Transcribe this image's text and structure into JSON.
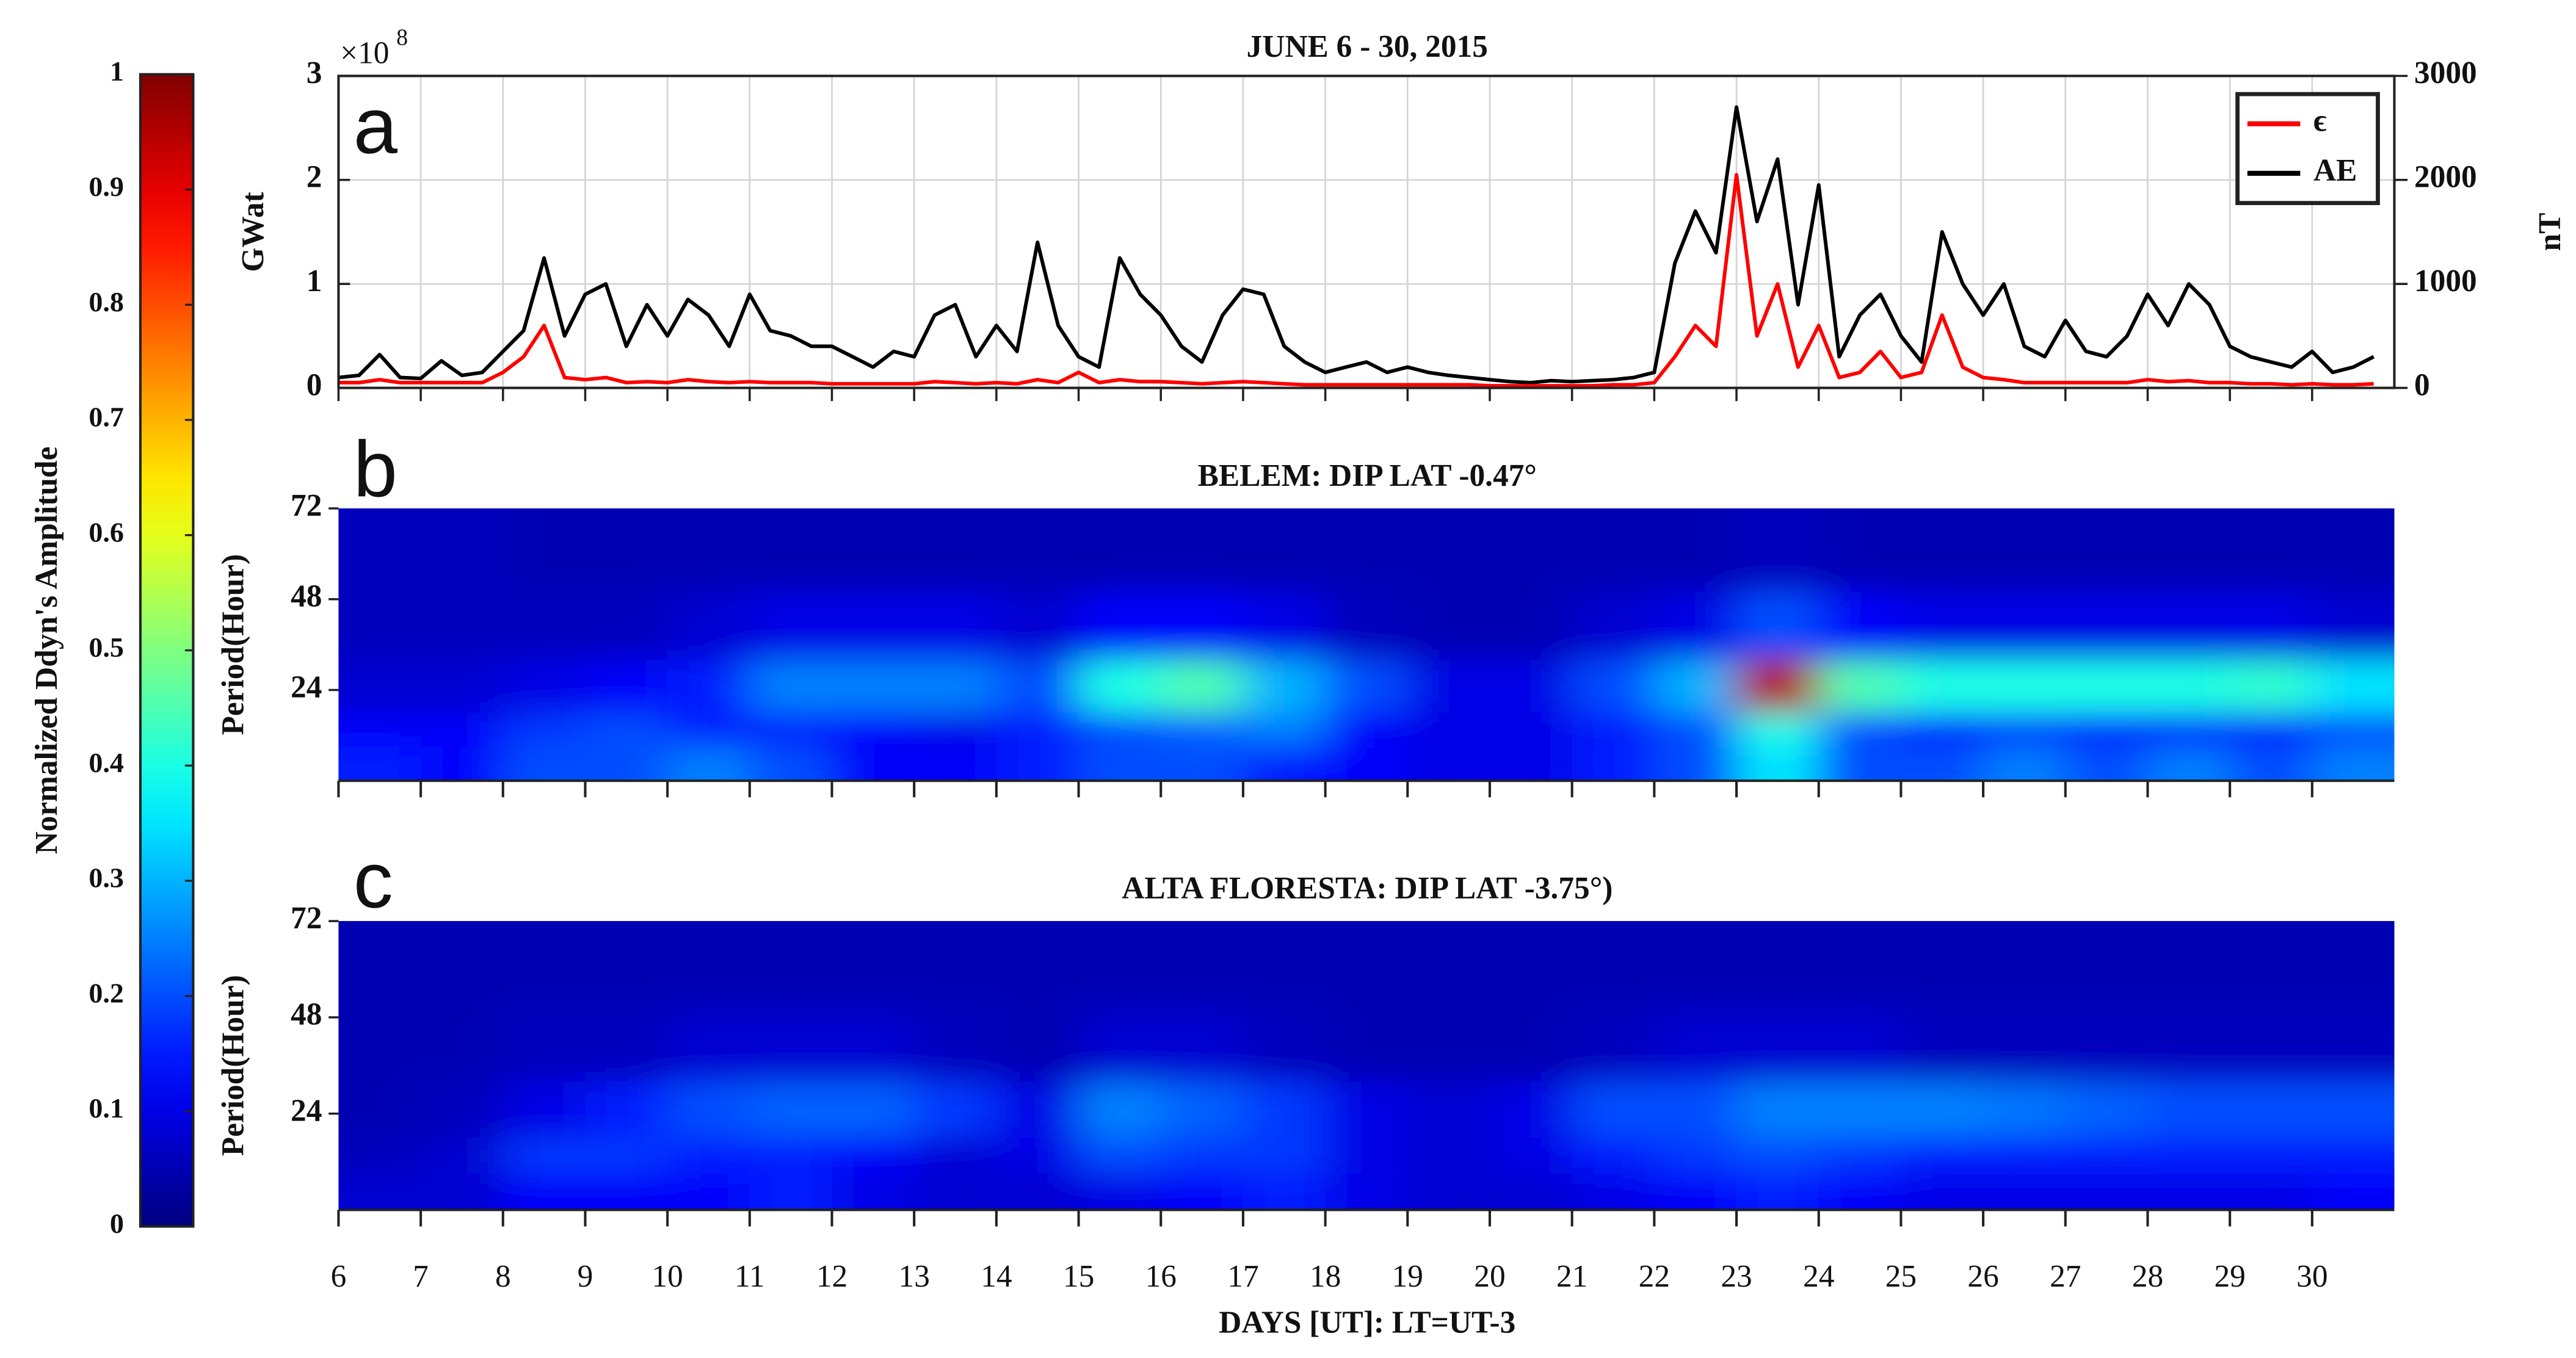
{
  "colorbar": {
    "label": "Normalized Ddyn's Amplitude",
    "colormap": "jet",
    "lim": [
      0,
      1
    ],
    "ticks": [
      0,
      0.1,
      0.2,
      0.3,
      0.4,
      0.5,
      0.6,
      0.7,
      0.8,
      0.9,
      1
    ]
  },
  "chart_data": [
    {
      "type": "line",
      "title": "JUNE 6 - 30, 2015",
      "panel_label": "a",
      "ylabel": "GWat",
      "y2label": "nT",
      "multiplier_base": "×10",
      "multiplier_exponent": "8",
      "xlim": [
        6,
        31
      ],
      "xticks": [
        6,
        7,
        8,
        9,
        10,
        11,
        12,
        13,
        14,
        15,
        16,
        17,
        18,
        19,
        20,
        21,
        22,
        23,
        24,
        25,
        26,
        27,
        28,
        29,
        30
      ],
      "ylim": [
        0,
        3
      ],
      "yticks": [
        0,
        1,
        2,
        3
      ],
      "y2lim": [
        0,
        3000
      ],
      "y2ticks": [
        0,
        1000,
        2000,
        3000
      ],
      "grid": true,
      "legend": "upper right",
      "x": [
        6,
        6.25,
        6.5,
        6.75,
        7,
        7.25,
        7.5,
        7.75,
        8,
        8.25,
        8.5,
        8.75,
        9,
        9.25,
        9.5,
        9.75,
        10,
        10.25,
        10.5,
        10.75,
        11,
        11.25,
        11.5,
        11.75,
        12,
        12.25,
        12.5,
        12.75,
        13,
        13.25,
        13.5,
        13.75,
        14,
        14.25,
        14.5,
        14.75,
        15,
        15.25,
        15.5,
        15.75,
        16,
        16.25,
        16.5,
        16.75,
        17,
        17.25,
        17.5,
        17.75,
        18,
        18.25,
        18.5,
        18.75,
        19,
        19.25,
        19.5,
        19.75,
        20,
        20.25,
        20.5,
        20.75,
        21,
        21.25,
        21.5,
        21.75,
        22,
        22.25,
        22.5,
        22.75,
        23,
        23.25,
        23.5,
        23.75,
        24,
        24.25,
        24.5,
        24.75,
        25,
        25.25,
        25.5,
        25.75,
        26,
        26.25,
        26.5,
        26.75,
        27,
        27.25,
        27.5,
        27.75,
        28,
        28.25,
        28.5,
        28.75,
        29,
        29.25,
        29.5,
        29.75,
        30,
        30.25,
        30.5,
        30.75
      ],
      "series": [
        {
          "name": "ϵ",
          "color": "#ff0000",
          "axis": "y",
          "values": [
            0.05,
            0.05,
            0.08,
            0.05,
            0.05,
            0.05,
            0.05,
            0.05,
            0.15,
            0.3,
            0.6,
            0.1,
            0.08,
            0.1,
            0.05,
            0.06,
            0.05,
            0.08,
            0.06,
            0.05,
            0.06,
            0.05,
            0.05,
            0.05,
            0.04,
            0.04,
            0.04,
            0.04,
            0.04,
            0.06,
            0.05,
            0.04,
            0.05,
            0.04,
            0.08,
            0.05,
            0.15,
            0.05,
            0.08,
            0.06,
            0.06,
            0.05,
            0.04,
            0.05,
            0.06,
            0.05,
            0.04,
            0.03,
            0.03,
            0.03,
            0.03,
            0.03,
            0.03,
            0.03,
            0.03,
            0.03,
            0.02,
            0.02,
            0.02,
            0.02,
            0.02,
            0.02,
            0.03,
            0.03,
            0.05,
            0.3,
            0.6,
            0.4,
            2.05,
            0.5,
            1.0,
            0.2,
            0.6,
            0.1,
            0.15,
            0.35,
            0.1,
            0.15,
            0.7,
            0.2,
            0.1,
            0.08,
            0.05,
            0.05,
            0.05,
            0.05,
            0.05,
            0.05,
            0.08,
            0.06,
            0.07,
            0.05,
            0.05,
            0.04,
            0.04,
            0.03,
            0.04,
            0.03,
            0.03,
            0.04
          ]
        },
        {
          "name": "AE",
          "color": "#000000",
          "axis": "y2",
          "values": [
            100,
            120,
            320,
            100,
            90,
            260,
            120,
            150,
            350,
            550,
            1250,
            500,
            900,
            1000,
            400,
            800,
            500,
            850,
            700,
            400,
            900,
            550,
            500,
            400,
            400,
            300,
            200,
            350,
            300,
            700,
            800,
            300,
            600,
            350,
            1400,
            600,
            300,
            200,
            1250,
            900,
            700,
            400,
            250,
            700,
            950,
            900,
            400,
            250,
            150,
            200,
            250,
            150,
            200,
            150,
            120,
            100,
            80,
            60,
            50,
            70,
            60,
            70,
            80,
            100,
            150,
            1200,
            1700,
            1300,
            2700,
            1600,
            2200,
            800,
            1950,
            300,
            700,
            900,
            500,
            250,
            1500,
            1000,
            700,
            1000,
            400,
            300,
            650,
            350,
            300,
            500,
            900,
            600,
            1000,
            800,
            400,
            300,
            250,
            200,
            350,
            150,
            200,
            300
          ]
        }
      ]
    },
    {
      "type": "heatmap",
      "title": "BELEM: DIP LAT -0.47°",
      "panel_label": "b",
      "ylabel": "Period(Hour)",
      "xlim": [
        6,
        31
      ],
      "xticks": [
        6,
        7,
        8,
        9,
        10,
        11,
        12,
        13,
        14,
        15,
        16,
        17,
        18,
        19,
        20,
        21,
        22,
        23,
        24,
        25,
        26,
        27,
        28,
        29,
        30
      ],
      "ylim": [
        0,
        72
      ],
      "yticks": [
        24,
        48,
        72
      ],
      "x": [
        6.5,
        7.5,
        8.5,
        9.5,
        10.5,
        11.5,
        12.5,
        13.5,
        14.5,
        15.5,
        16.5,
        17.5,
        18.5,
        19.5,
        20.5,
        21.5,
        22.5,
        23.5,
        24.5,
        25.5,
        26.5,
        27.5,
        28.5,
        29.5,
        30.5
      ],
      "periods": [
        6,
        12,
        24,
        40,
        60
      ],
      "z": [
        [
          0.15,
          0.12,
          0.2,
          0.2,
          0.25,
          0.2,
          0.12,
          0.12,
          0.15,
          0.2,
          0.2,
          0.15,
          0.12,
          0.1,
          0.1,
          0.15,
          0.2,
          0.35,
          0.2,
          0.2,
          0.25,
          0.2,
          0.25,
          0.2,
          0.25
        ],
        [
          0.12,
          0.12,
          0.18,
          0.2,
          0.15,
          0.15,
          0.12,
          0.1,
          0.15,
          0.2,
          0.22,
          0.25,
          0.12,
          0.1,
          0.1,
          0.15,
          0.2,
          0.4,
          0.2,
          0.15,
          0.18,
          0.15,
          0.15,
          0.15,
          0.2
        ],
        [
          0.08,
          0.08,
          0.1,
          0.12,
          0.15,
          0.25,
          0.25,
          0.25,
          0.2,
          0.4,
          0.45,
          0.3,
          0.2,
          0.1,
          0.1,
          0.2,
          0.3,
          0.95,
          0.45,
          0.4,
          0.4,
          0.4,
          0.4,
          0.42,
          0.35
        ],
        [
          0.06,
          0.06,
          0.06,
          0.06,
          0.08,
          0.1,
          0.1,
          0.1,
          0.08,
          0.12,
          0.12,
          0.1,
          0.06,
          0.05,
          0.05,
          0.08,
          0.1,
          0.2,
          0.12,
          0.1,
          0.1,
          0.1,
          0.1,
          0.1,
          0.08
        ],
        [
          0.06,
          0.06,
          0.05,
          0.05,
          0.05,
          0.05,
          0.05,
          0.05,
          0.05,
          0.05,
          0.05,
          0.05,
          0.05,
          0.05,
          0.05,
          0.05,
          0.05,
          0.06,
          0.05,
          0.05,
          0.05,
          0.05,
          0.05,
          0.05,
          0.05
        ]
      ]
    },
    {
      "type": "heatmap",
      "title": "ALTA FLORESTA: DIP LAT -3.75°)",
      "panel_label": "c",
      "ylabel": "Period(Hour)",
      "xlabel": "DAYS [UT]: LT=UT-3",
      "xtick_labels": true,
      "xlim": [
        6,
        31
      ],
      "xticks": [
        6,
        7,
        8,
        9,
        10,
        11,
        12,
        13,
        14,
        15,
        16,
        17,
        18,
        19,
        20,
        21,
        22,
        23,
        24,
        25,
        26,
        27,
        28,
        29,
        30
      ],
      "ylim": [
        0,
        72
      ],
      "yticks": [
        24,
        48,
        72
      ],
      "x": [
        6.5,
        7.5,
        8.5,
        9.5,
        10.5,
        11.5,
        12.5,
        13.5,
        14.5,
        15.5,
        16.5,
        17.5,
        18.5,
        19.5,
        20.5,
        21.5,
        22.5,
        23.5,
        24.5,
        25.5,
        26.5,
        27.5,
        28.5,
        29.5,
        30.5
      ],
      "periods": [
        6,
        12,
        24,
        40,
        60
      ],
      "z": [
        [
          0.08,
          0.08,
          0.12,
          0.12,
          0.12,
          0.15,
          0.1,
          0.08,
          0.08,
          0.1,
          0.12,
          0.15,
          0.1,
          0.08,
          0.08,
          0.1,
          0.12,
          0.15,
          0.12,
          0.1,
          0.1,
          0.1,
          0.1,
          0.1,
          0.12
        ],
        [
          0.06,
          0.08,
          0.18,
          0.18,
          0.15,
          0.15,
          0.12,
          0.08,
          0.1,
          0.2,
          0.18,
          0.18,
          0.1,
          0.08,
          0.1,
          0.15,
          0.18,
          0.2,
          0.18,
          0.15,
          0.15,
          0.15,
          0.15,
          0.15,
          0.15
        ],
        [
          0.05,
          0.06,
          0.1,
          0.15,
          0.2,
          0.22,
          0.22,
          0.18,
          0.1,
          0.25,
          0.22,
          0.18,
          0.1,
          0.08,
          0.1,
          0.2,
          0.2,
          0.25,
          0.25,
          0.25,
          0.24,
          0.22,
          0.2,
          0.2,
          0.2
        ],
        [
          0.05,
          0.05,
          0.06,
          0.06,
          0.08,
          0.08,
          0.08,
          0.06,
          0.05,
          0.08,
          0.08,
          0.06,
          0.05,
          0.05,
          0.05,
          0.06,
          0.08,
          0.08,
          0.08,
          0.06,
          0.06,
          0.06,
          0.06,
          0.06,
          0.06
        ],
        [
          0.05,
          0.05,
          0.05,
          0.05,
          0.05,
          0.05,
          0.05,
          0.05,
          0.05,
          0.05,
          0.05,
          0.05,
          0.05,
          0.05,
          0.05,
          0.05,
          0.05,
          0.05,
          0.05,
          0.05,
          0.05,
          0.05,
          0.05,
          0.05,
          0.05
        ]
      ]
    }
  ]
}
